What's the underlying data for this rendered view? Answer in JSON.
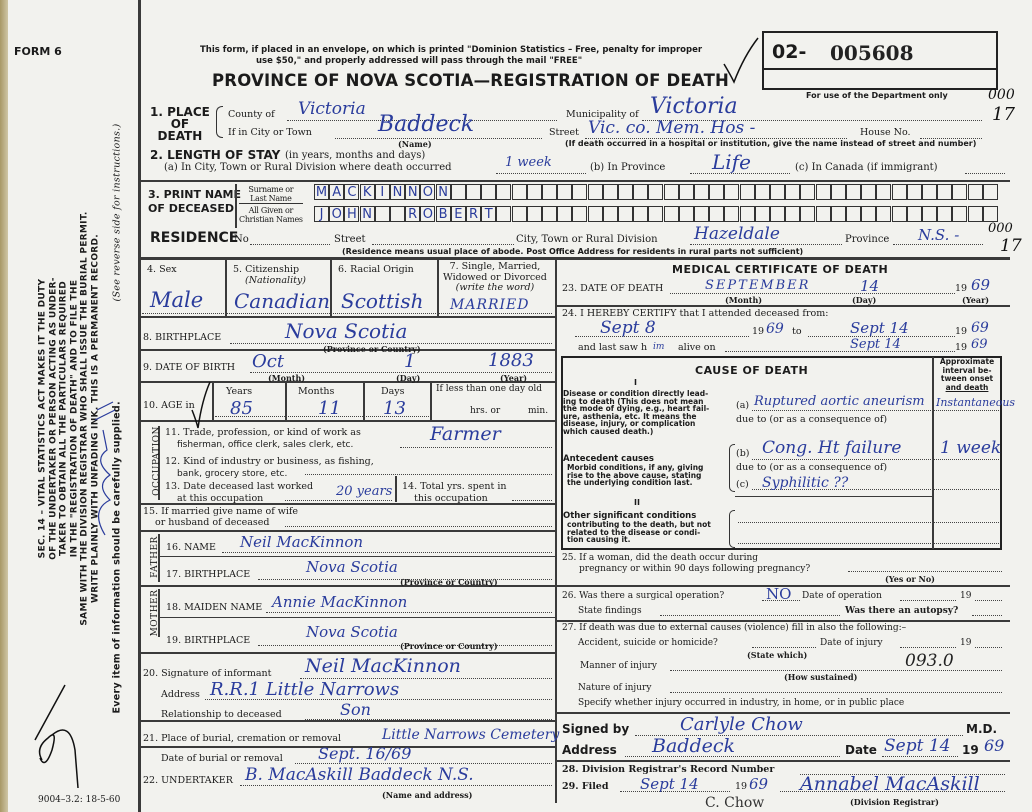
{
  "header": {
    "form_label": "FORM 6",
    "notice_line1": "This form, if placed in an envelope, on which is printed \"Dominion Statistics – Free, penalty for improper",
    "notice_line2": "use $50,\" and properly addressed will pass through the mail \"FREE\"",
    "title": "PROVINCE OF NOVA SCOTIA—REGISTRATION OF DEATH",
    "registration_prefix": "02-",
    "registration_number": "005608",
    "department_note": "For use of the Department only",
    "margin_code_top": "000",
    "margin_code_bottom": "17"
  },
  "side_notice": {
    "lines": [
      "SEC. 14 – VITAL STATISTICS ACT MAKES IT THE DUTY",
      "OF THE UNDERTAKER OR PERSON ACTING AS UNDER-",
      "TAKER TO OBTAIN ALL THE PARTICULARS REQUIRED",
      "IN THE \"REGISTRATION OF DEATH\" AND TO FILE THE",
      "SAME WITH THE DIVISION REGISTRAR WHO SHALL ISSUE THE BURIAL PERMIT.",
      "WRITE PLAINLY WITH UNFADING INK. THIS IS A PERMANENT RECORD."
    ],
    "every_item": "Every item of information should be carefully supplied.",
    "see_reverse": "(See reverse side for instructions.)",
    "form_code": "9004–3.2: 18-5-60"
  },
  "place_of_death": {
    "label": "1. PLACE OF DEATH",
    "label_l1": "1. PLACE",
    "label_l2": "OF",
    "label_l3": "DEATH",
    "county_label": "County of",
    "county": "Victoria",
    "municipality_label": "Municipality of",
    "municipality": "Victoria",
    "city_label": "If in City or Town",
    "city": "Baddeck",
    "name_hint": "(Name)",
    "street_label": "Street",
    "street": "Vic. co. Mem. Hos -",
    "house_label": "House No.",
    "hospital_note": "(If death occurred in a hospital or institution, give the name instead of street and number)",
    "margin_code_top": "000",
    "margin_code_bottom": "17"
  },
  "length_of_stay": {
    "label": "2. LENGTH OF STAY",
    "hint": "(in years, months and days)",
    "a_label": "(a) In City, Town or Rural Division where death occurred",
    "a_value": "1 week",
    "b_label": "(b) In Province",
    "b_value": "Life",
    "c_label": "(c) In Canada (if immigrant)"
  },
  "deceased_name": {
    "label_l1": "3. PRINT NAME",
    "label_l2": "OF DECEASED",
    "surname_label_l1": "Surname or",
    "surname_label_l2": "Last Name",
    "given_label_l1": "All Given or",
    "given_label_l2": "Christian Names",
    "surname_letters": [
      "M",
      "A",
      "C",
      "K",
      "I",
      "N",
      "N",
      "O",
      "N"
    ],
    "given_letters": [
      "J",
      "O",
      "H",
      "N",
      "",
      "",
      "R",
      "O",
      "B",
      "E",
      "R",
      "T"
    ]
  },
  "residence": {
    "label": "RESIDENCE",
    "no_label": "No",
    "street_label": "Street",
    "city_label": "City, Town or Rural Division",
    "city": "Hazeldale",
    "province_label": "Province",
    "province": "N.S. -",
    "note": "(Residence means usual place of abode. Post Office Address for residents in rural parts not sufficient)",
    "margin_code_top": "000",
    "margin_code_bottom": "17"
  },
  "personal": {
    "sex_label": "4. Sex",
    "sex": "Male",
    "citizenship_label": "5. Citizenship",
    "citizenship_hint": "(Nationality)",
    "citizenship": "Canadian",
    "racial_label": "6. Racial Origin",
    "racial": "Scottish",
    "marital_label_l1": "7. Single, Married,",
    "marital_label_l2": "Widowed or Divorced",
    "marital_hint": "(write the word)",
    "marital": "MARRIED",
    "birthplace_label": "8. BIRTHPLACE",
    "birthplace": "Nova Scotia",
    "birthplace_hint": "(Province or Country)",
    "dob_label": "9. DATE OF BIRTH",
    "dob_month": "Oct",
    "dob_day": "1",
    "dob_year": "1883",
    "month_hint": "(Month)",
    "day_hint": "(Day)",
    "year_hint": "(Year)",
    "age_label": "10. AGE in",
    "years_label": "Years",
    "years": "85",
    "months_label": "Months",
    "months": "11",
    "days_label": "Days",
    "days": "13",
    "under_day_label": "If less than one day old",
    "hrs_label": "hrs. or",
    "min_label": "min."
  },
  "occupation": {
    "side_label": "OCCUPATION",
    "q11_l1": "11. Trade, profession, or kind of work as",
    "q11_l2": "fisherman, office clerk, sales clerk, etc.",
    "q11_value": "Farmer",
    "q12_l1": "12. Kind of industry or business, as fishing,",
    "q12_l2": "bank, grocery store, etc.",
    "q13_l1": "13. Date deceased last worked",
    "q13_l2": "at this occupation",
    "q13_value": "20 years",
    "q14_l1": "14. Total yrs. spent in",
    "q14_l2": "this occupation"
  },
  "family": {
    "q15_l1": "15. If married give name of wife",
    "q15_l2": "or husband of deceased",
    "father_label": "FATHER",
    "father_name_label": "16. NAME",
    "father_name": "Neil MacKinnon",
    "father_birthplace_label": "17. BIRTHPLACE",
    "father_birthplace": "Nova Scotia",
    "mother_label": "MOTHER",
    "mother_maiden_label": "18. MAIDEN NAME",
    "mother_maiden": "Annie MacKinnon",
    "mother_birthplace_label": "19. BIRTHPLACE",
    "mother_birthplace": "Nova Scotia",
    "country_hint": "(Province or Country)"
  },
  "informant": {
    "signature_label": "20. Signature of informant",
    "signature": "Neil MacKinnon",
    "address_label": "Address",
    "address": "R.R.1 Little Narrows",
    "relationship_label": "Relationship to deceased",
    "relationship": "Son"
  },
  "burial": {
    "place_label": "21. Place of burial, cremation or removal",
    "place": "Little Narrows Cemetery",
    "date_label": "Date of burial or removal",
    "date": "Sept. 16/69",
    "undertaker_label": "22. UNDERTAKER",
    "undertaker": "B. MacAskill Baddeck N.S.",
    "undertaker_hint": "(Name and address)"
  },
  "medical": {
    "heading": "MEDICAL CERTIFICATE OF DEATH",
    "dod_label": "23. DATE OF DEATH",
    "dod_month": "SEPTEMBER",
    "dod_day": "14",
    "year_prefix": "19",
    "dod_year": "69",
    "month_hint": "(Month)",
    "day_hint": "(Day)",
    "year_hint": "(Year)",
    "certify_label": "24. I HEREBY CERTIFY that I attended deceased from:",
    "from_date": "Sept 8",
    "from_year": "69",
    "to_label": "to",
    "to_date": "Sept 14",
    "to_year": "69",
    "last_saw_label": "and last saw h",
    "last_saw_pronoun": "im",
    "alive_on_label": "alive on",
    "last_saw_date": "Sept 14",
    "last_saw_year": "69"
  },
  "cause_of_death": {
    "heading": "CAUSE OF DEATH",
    "interval_heading_l1": "Approximate",
    "interval_heading_l2": "interval be-",
    "interval_heading_l3": "tween onset",
    "interval_heading_l4": "and death",
    "part1": "I",
    "direct_l1": "Disease or condition directly lead-",
    "direct_l2": "ing to death (This does not mean",
    "direct_l3": "the mode of dying, e.g., heart fail-",
    "direct_l4": "ure, asthenia, etc. It means the",
    "direct_l5": "disease, injury, or complication",
    "direct_l6": "which caused death.)",
    "a_label": "(a)",
    "a_value": "Ruptured aortic aneurism",
    "a_interval": "Instantaneous",
    "due_to": "due to (or as a consequence of)",
    "antecedent_l1": "Antecedent causes",
    "antecedent_l2": "Morbid conditions, if any, giving",
    "antecedent_l3": "rise to the above cause, stating",
    "antecedent_l4": "the underlying condition last.",
    "b_label": "(b)",
    "b_value": "Cong. Ht failure",
    "b_interval": "1 week",
    "c_label": "(c)",
    "c_value": "Syphilitic ??",
    "part2": "II",
    "other_l1": "Other significant conditions",
    "other_l2": "contributing to the death, but not",
    "other_l3": "related to the disease or condi-",
    "other_l4": "tion causing it."
  },
  "other_questions": {
    "q25_l1": "25. If a woman, did the death occur during",
    "q25_l2": "pregnancy or within 90 days following pregnancy?",
    "yes_no_hint": "(Yes or No)",
    "q26_label": "26. Was there a surgical operation?",
    "q26_value": "NO",
    "operation_date_label": "Date of operation",
    "year_prefix": "19",
    "findings_label": "State findings",
    "autopsy_label": "Was there an autopsy?",
    "q27_label": "27. If death was due to external causes (violence) fill in also the following:–",
    "accident_label": "Accident, suicide or homicide?",
    "injury_date_label": "Date of injury",
    "state_which_hint": "(State which)",
    "manner_label": "Manner of injury",
    "manner_code": "093.0",
    "how_hint": "(How sustained)",
    "nature_label": "Nature of injury",
    "specify_label": "Specify whether injury occurred in industry, in home, or in public place"
  },
  "signature": {
    "signed_label": "Signed by",
    "signed_value": "Carlyle Chow",
    "md_label": "M.D.",
    "address_label": "Address",
    "address_value": "Baddeck",
    "date_label": "Date",
    "date_value": "Sept 14",
    "year_prefix": "19",
    "year_value": "69"
  },
  "registrar": {
    "record_label": "28. Division Registrar's Record Number",
    "filed_label": "29. Filed",
    "filed_date": "Sept 14",
    "year_prefix": "19",
    "filed_year": "69",
    "registrar_signature": "Annabel MacAskill",
    "registrar_hint": "(Division Registrar)",
    "initials_note": "C. Chow"
  },
  "colors": {
    "paper": "#f2f2ee",
    "ink_blue": "#2a3c9c",
    "print": "#1b1b1b"
  }
}
